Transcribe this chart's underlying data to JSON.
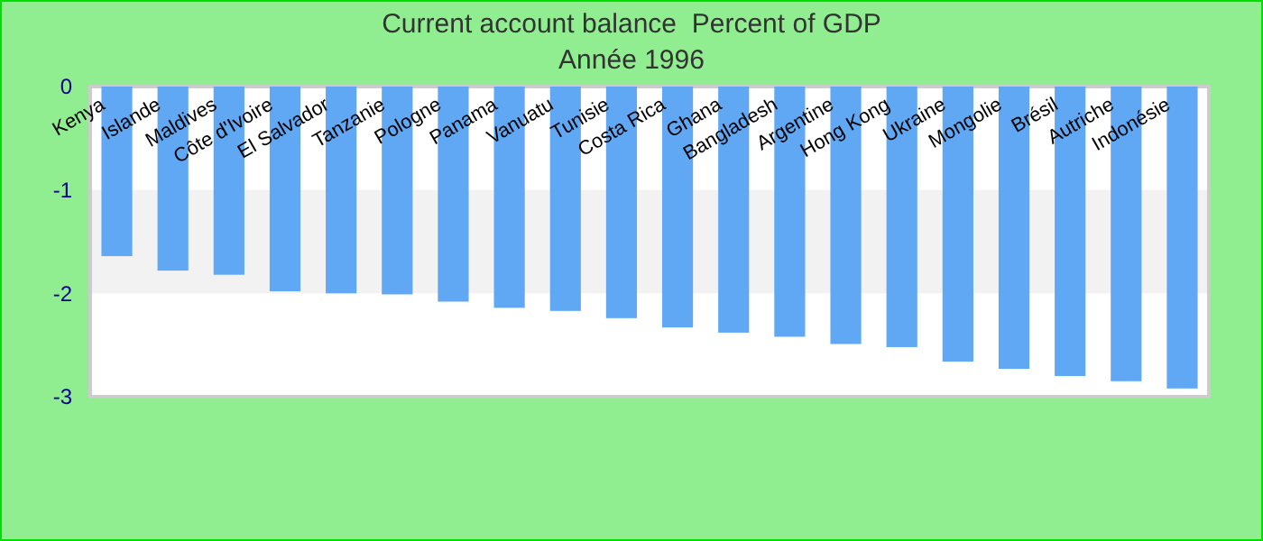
{
  "chart_data": {
    "type": "bar",
    "title": "Current account balance  Percent of GDP",
    "subtitle": "Année 1996",
    "categories": [
      "Kenya",
      "Islande",
      "Maldives",
      "Côte d'Ivoire",
      "El Salvador",
      "Tanzanie",
      "Pologne",
      "Panama",
      "Vanuatu",
      "Tunisie",
      "Costa Rica",
      "Ghana",
      "Bangladesh",
      "Argentine",
      "Hong Kong",
      "Ukraine",
      "Mongolie",
      "Brésil",
      "Autriche",
      "Indonésie"
    ],
    "values": [
      -1.64,
      -1.78,
      -1.82,
      -1.98,
      -2.0,
      -2.01,
      -2.08,
      -2.14,
      -2.17,
      -2.24,
      -2.33,
      -2.38,
      -2.42,
      -2.49,
      -2.52,
      -2.66,
      -2.73,
      -2.8,
      -2.85,
      -2.92
    ],
    "color": "#61a8f4",
    "ylim": [
      -3,
      0
    ],
    "yticks": [
      0,
      -1,
      -2,
      -3
    ],
    "bands": [
      {
        "axis": "y",
        "from": -2,
        "to": -1,
        "color": "#f2f2f2"
      }
    ]
  }
}
